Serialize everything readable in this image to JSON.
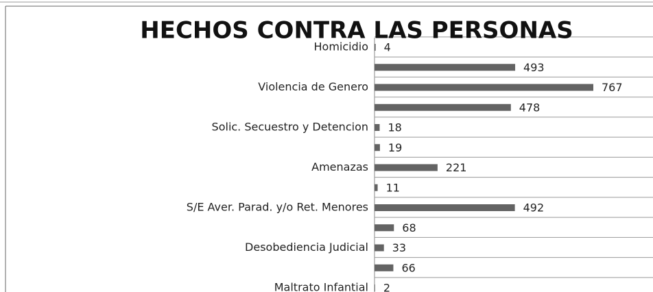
{
  "chart_data": {
    "type": "bar",
    "orientation": "horizontal",
    "title": "HECHOS CONTRA LAS PERSONAS",
    "categories": [
      "Homicidio",
      null,
      "Violencia de Genero",
      null,
      "Solic.  Secuestro y Detencion",
      null,
      "Amenazas",
      null,
      "S/E Aver. Parad. y/o Ret. Menores",
      null,
      "Desobediencia Judicial",
      null,
      "Maltrato Infantial"
    ],
    "values": [
      4,
      493,
      767,
      478,
      18,
      19,
      221,
      11,
      492,
      68,
      33,
      66,
      2
    ],
    "color": "#636363"
  }
}
